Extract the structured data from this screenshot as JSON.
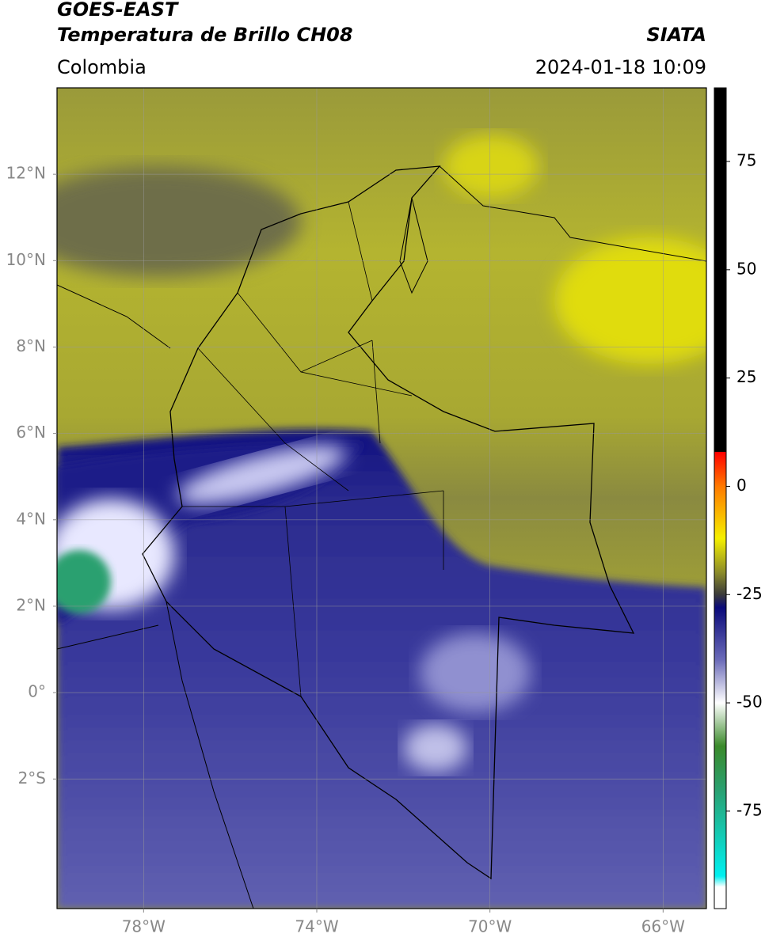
{
  "header": {
    "title": "GOES-EAST",
    "subtitle": "Temperatura de Brillo CH08",
    "region": "Colombia",
    "source": "SIATA",
    "datetime": "2024-01-18 10:09"
  },
  "map": {
    "type": "map",
    "xlim": [
      -80,
      -65
    ],
    "ylim": [
      -5,
      14
    ],
    "xticks": [
      {
        "value": -78,
        "label": "78°W"
      },
      {
        "value": -74,
        "label": "74°W"
      },
      {
        "value": -70,
        "label": "70°W"
      },
      {
        "value": -66,
        "label": "66°W"
      }
    ],
    "yticks": [
      {
        "value": 12,
        "label": "12°N"
      },
      {
        "value": 10,
        "label": "10°N"
      },
      {
        "value": 8,
        "label": "8°N"
      },
      {
        "value": 6,
        "label": "6°N"
      },
      {
        "value": 4,
        "label": "4°N"
      },
      {
        "value": 2,
        "label": "2°N"
      },
      {
        "value": 0,
        "label": "0°"
      },
      {
        "value": -2,
        "label": "2°S"
      }
    ],
    "grid": true
  },
  "colorbar": {
    "lim": [
      -97.5,
      92
    ],
    "ticks": [
      75,
      50,
      25,
      0,
      -25,
      -50,
      -75
    ],
    "colors": [
      {
        "value": 92,
        "color": "#000000"
      },
      {
        "value": 8,
        "color": "#000000"
      },
      {
        "value": 7.9,
        "color": "#ff0000"
      },
      {
        "value": 0,
        "color": "#ff7a00"
      },
      {
        "value": -12,
        "color": "#f5f000"
      },
      {
        "value": -20,
        "color": "#8a8a2a"
      },
      {
        "value": -25,
        "color": "#3a3a3a"
      },
      {
        "value": -28,
        "color": "#0a0a7a"
      },
      {
        "value": -40,
        "color": "#6a6ab8"
      },
      {
        "value": -50,
        "color": "#ffffff"
      },
      {
        "value": -60,
        "color": "#3a8a2a"
      },
      {
        "value": -70,
        "color": "#2aa070"
      },
      {
        "value": -90,
        "color": "#00f0f0"
      },
      {
        "value": -92.5,
        "color": "#ffffff"
      },
      {
        "value": -97.5,
        "color": "#ffffff"
      }
    ]
  }
}
